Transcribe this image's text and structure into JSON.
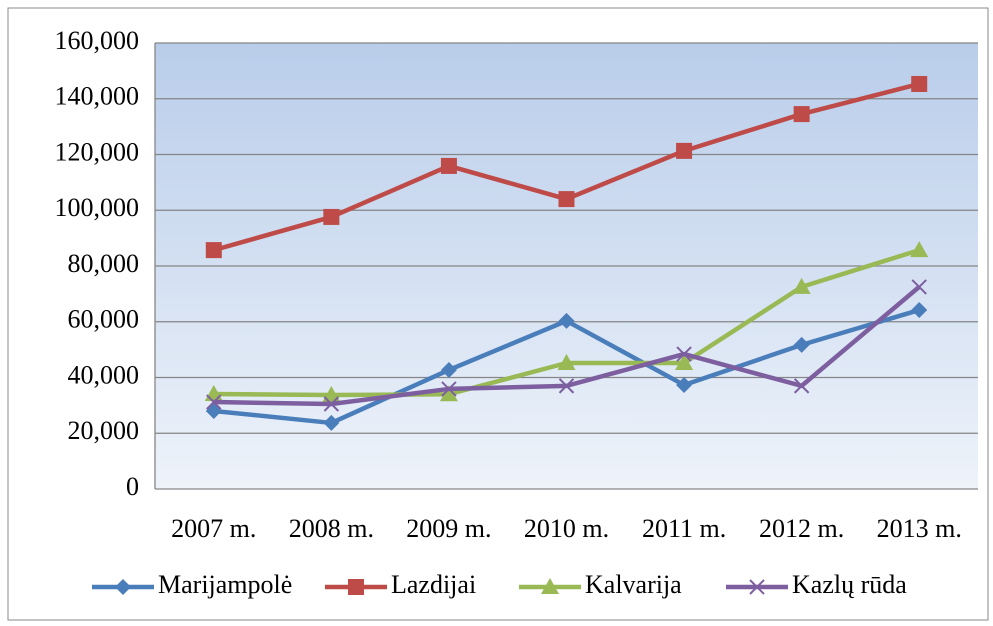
{
  "chart_data": {
    "type": "line",
    "categories": [
      "2007 m.",
      "2008 m.",
      "2009 m.",
      "2010 m.",
      "2011 m.",
      "2012 m.",
      "2013 m."
    ],
    "series": [
      {
        "name": "Marijampolė",
        "color": "#4a7ebb",
        "marker": "diamond",
        "values": [
          28000,
          23700,
          42700,
          60300,
          37300,
          51700,
          64200
        ]
      },
      {
        "name": "Lazdijai",
        "color": "#be4b48",
        "marker": "square",
        "values": [
          85700,
          97600,
          115900,
          104000,
          121300,
          134500,
          145300
        ]
      },
      {
        "name": "Kalvarija",
        "color": "#98b954",
        "marker": "triangle",
        "values": [
          34100,
          33700,
          34000,
          45200,
          45200,
          72500,
          85700
        ]
      },
      {
        "name": "Kazlų rūda",
        "color": "#7d5fa0",
        "marker": "x",
        "values": [
          31200,
          30500,
          35900,
          37000,
          48400,
          37000,
          72500
        ]
      }
    ],
    "ylim": [
      0,
      160000
    ],
    "yticks": [
      0,
      {
        "value": 20000,
        "label": "20,000"
      },
      {
        "value": 40000,
        "label": "40,000"
      },
      {
        "value": 60000,
        "label": "60,000"
      },
      {
        "value": 80000,
        "label": "80,000"
      },
      {
        "value": 100000,
        "label": "100,000"
      },
      {
        "value": 120000,
        "label": "120,000"
      },
      {
        "value": 140000,
        "label": "140,000"
      },
      {
        "value": 160000,
        "label": "160,000"
      }
    ],
    "grid": true,
    "legend": "bottom"
  }
}
